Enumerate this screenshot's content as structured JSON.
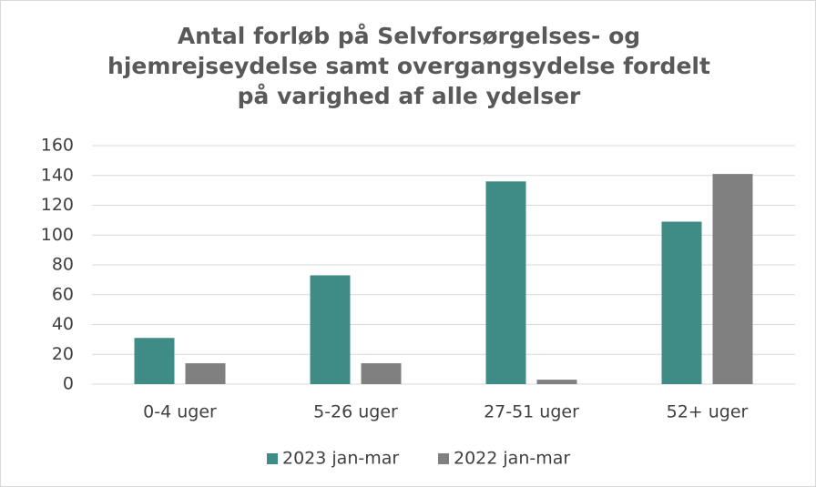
{
  "chart_data": {
    "type": "bar",
    "title": "Antal forløb på Selvforsørgelses- og hjemrejseydelse samt overgangsydelse fordelt på varighed af alle ydelser",
    "categories": [
      "0-4 uger",
      "5-26 uger",
      "27-51 uger",
      "52+ uger"
    ],
    "series": [
      {
        "name": "2023 jan-mar",
        "color": "#3f8c87",
        "values": [
          31,
          73,
          136,
          109
        ]
      },
      {
        "name": "2022 jan-mar",
        "color": "#808080",
        "values": [
          14,
          14,
          3,
          141
        ]
      }
    ],
    "ylim": [
      0,
      160
    ],
    "yticks": [
      0,
      20,
      40,
      60,
      80,
      100,
      120,
      140,
      160
    ],
    "grid": true,
    "legend": "bottom"
  }
}
